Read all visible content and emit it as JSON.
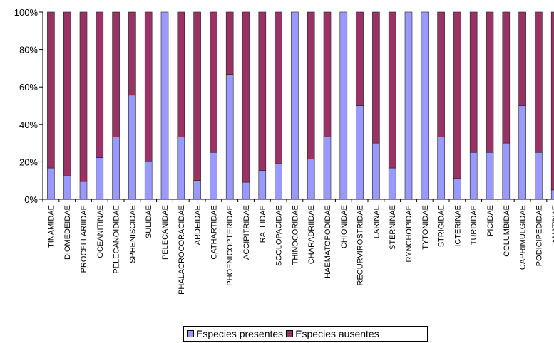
{
  "chart_data": {
    "type": "bar",
    "stacked": "percent",
    "categories": [
      "TINAMIDAE",
      "DIOMEDEIDAE",
      "PROCELLARIIDAE",
      "OCEANITINAE",
      "PELECANOIDIDAE",
      "SPHENISCIDAE",
      "SULIDAE",
      "PELECANIDAE",
      "PHALACROCORACIDAE",
      "ARDEIDAE",
      "CATHARTIDAE",
      "PHOENICOPTERIDAE",
      "ACCIPITRIDAE",
      "RALLIDAE",
      "SCOLOPACIDAE",
      "THINOCORIDAE",
      "CHARADRIIDAE",
      "HAEMATOPODIDAE",
      "CHIONIDAE",
      "RECURVIROSTRIDAE",
      "LARINAE",
      "STERNINAE",
      "RYNCHOPIDAE",
      "TYTONIDAE",
      "STRIGIDAE",
      "ICTERINAE",
      "TURDIDAE",
      "PICIDAE",
      "COLUMBIDAE",
      "CAPRIMULGIDAE",
      "PODICIPEDIDAE",
      "ANATINAE"
    ],
    "series": [
      {
        "name": "Especies presentes",
        "color": "#9999ff",
        "values": [
          16.7,
          12.5,
          9.5,
          22.2,
          33.3,
          55.6,
          20,
          100,
          33.3,
          10,
          25,
          66.7,
          9.1,
          15.4,
          19,
          100,
          21.4,
          33.3,
          100,
          50,
          30,
          16.7,
          100,
          100,
          33.3,
          11.1,
          25,
          25,
          30,
          50,
          25,
          5
        ]
      },
      {
        "name": "Especies ausentes",
        "color": "#993366",
        "values": [
          83.3,
          87.5,
          90.5,
          77.8,
          66.7,
          44.4,
          80,
          0,
          66.7,
          90,
          75,
          33.3,
          90.9,
          84.6,
          81,
          0,
          78.6,
          66.7,
          0,
          50,
          70,
          83.3,
          0,
          0,
          66.7,
          88.9,
          75,
          75,
          70,
          50,
          75,
          95
        ]
      }
    ],
    "yticks": [
      "0%",
      "20%",
      "40%",
      "60%",
      "80%",
      "100%"
    ],
    "ylim": [
      0,
      100
    ],
    "grid": false,
    "legend_position": "bottom"
  },
  "legend": {
    "present_label": "Especies presentes",
    "absent_label": "Especies ausentes"
  }
}
